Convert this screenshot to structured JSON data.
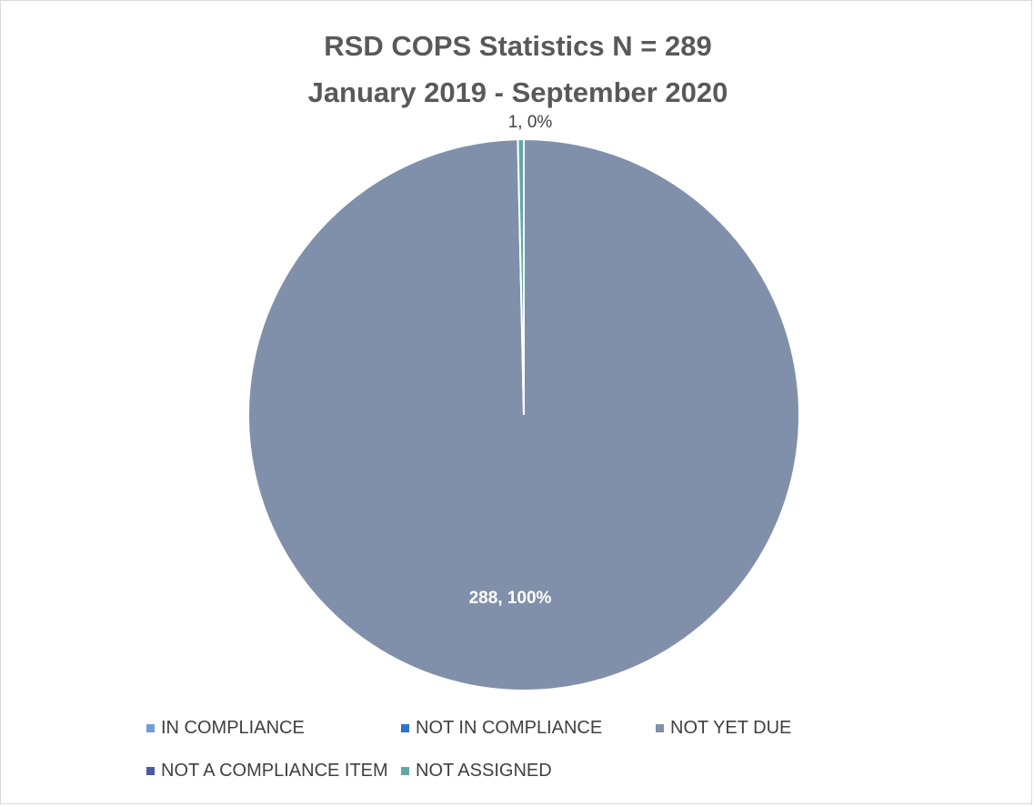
{
  "chart_data": {
    "type": "pie",
    "title": [
      "RSD COPS Statistics N = 289",
      "January 2019 - September 2020"
    ],
    "categories": [
      "IN COMPLIANCE",
      "NOT IN COMPLIANCE",
      "NOT YET DUE",
      "NOT A COMPLIANCE ITEM",
      "NOT ASSIGNED"
    ],
    "values": [
      0,
      0,
      288,
      0,
      1
    ],
    "colors": [
      "#6f9fd4",
      "#2e75c6",
      "#8190aa",
      "#4a5a9e",
      "#5fa8a8"
    ],
    "data_labels": [
      {
        "category": "NOT YET DUE",
        "text": "288, 100%"
      },
      {
        "category": "NOT ASSIGNED",
        "text": "1, 0%"
      }
    ],
    "legend": {
      "position": "bottom"
    }
  }
}
